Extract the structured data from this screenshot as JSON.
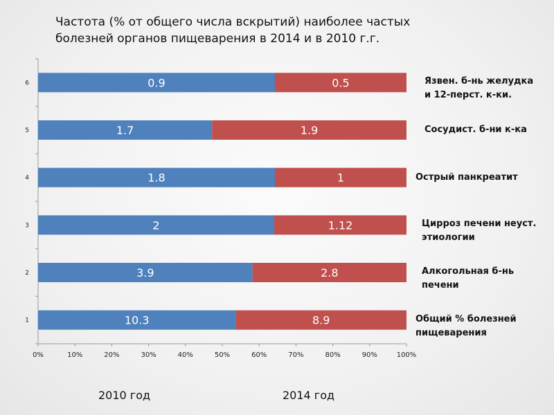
{
  "title": {
    "line1": "Частота (% от общего числа вскрытий) наиболее частых",
    "line2": "болезней органов пищеварения в 2014 и в 2010 г.г."
  },
  "colors": {
    "series_2010": "#4f81bd",
    "series_2014": "#c0504d"
  },
  "chart_data": {
    "type": "bar",
    "orientation": "horizontal",
    "stacked_percent": true,
    "categories": [
      "1",
      "2",
      "3",
      "4",
      "5",
      "6"
    ],
    "category_labels": [
      [
        "Общий % болезней",
        "пищеварения"
      ],
      [
        "Алкогольная  б-нь",
        "печени"
      ],
      [
        "Цирроз печени неуст.",
        "этиологии"
      ],
      [
        "Острый панкреатит"
      ],
      [
        "Сосудист.  б-ни к-ка"
      ],
      [
        "Язвен. б-нь желудка",
        "и 12-перст. к-ки."
      ]
    ],
    "series": [
      {
        "name": "2010 год",
        "values": [
          10.3,
          3.9,
          2,
          1.8,
          1.7,
          0.9
        ],
        "labels": [
          "10.3",
          "3.9",
          "2",
          "1.8",
          "1.7",
          "0.9"
        ]
      },
      {
        "name": "2014 год",
        "values": [
          8.9,
          2.8,
          1.12,
          1,
          1.9,
          0.5
        ],
        "labels": [
          "8.9",
          "2.8",
          "1.12",
          "1",
          "1.9",
          "0.5"
        ]
      }
    ],
    "x_ticks": [
      "0%",
      "10%",
      "20%",
      "30%",
      "40%",
      "50%",
      "60%",
      "70%",
      "80%",
      "90%",
      "100%"
    ],
    "xlim": [
      0,
      100
    ],
    "grid": false,
    "legend": "bottom"
  }
}
